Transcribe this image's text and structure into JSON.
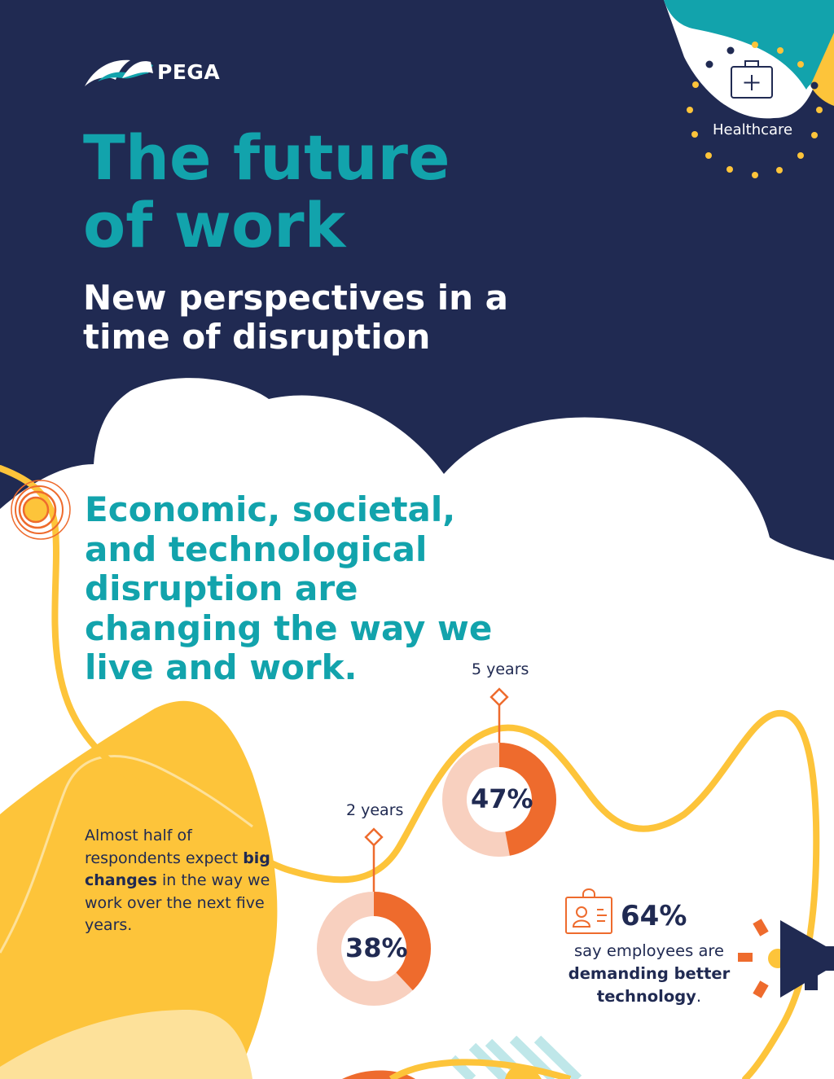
{
  "brand": {
    "name": "PEGA"
  },
  "badge": {
    "label": "Healthcare",
    "icon": "medical-kit-icon"
  },
  "header": {
    "title_line1": "The future",
    "title_line2": "of work",
    "subtitle_line1": "New perspectives in a",
    "subtitle_line2": "time of disruption"
  },
  "headline": "Economic, societal, and technological disruption are changing the way we live and work.",
  "note": {
    "pre": "Almost half of respondents expect ",
    "bold": "big changes",
    "post": " in the way we work over the next five years."
  },
  "donuts": [
    {
      "label": "2 years",
      "value": 38,
      "text": "38%"
    },
    {
      "label": "5 years",
      "value": 47,
      "text": "47%"
    }
  ],
  "stat": {
    "value": "64%",
    "text_pre": "say employees are ",
    "text_bold": "demanding better technology",
    "text_post": ".",
    "icon": "id-badge-icon"
  },
  "colors": {
    "navy": "#202a52",
    "teal": "#12a3ac",
    "yellow": "#fdc43a",
    "orange": "#ee6b2d",
    "peach": "#f8d0bf"
  }
}
